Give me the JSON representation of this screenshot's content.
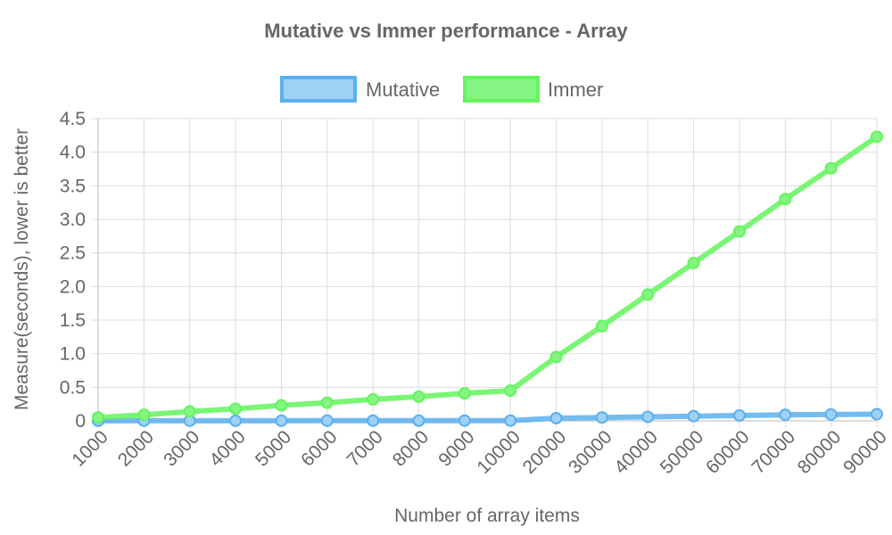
{
  "chart_data": {
    "type": "line",
    "title": "Mutative vs Immer performance - Array",
    "xlabel": "Number of array items",
    "ylabel": "Measure(seconds), lower is better",
    "categories": [
      "1000",
      "2000",
      "3000",
      "4000",
      "5000",
      "6000",
      "7000",
      "8000",
      "9000",
      "10000",
      "20000",
      "30000",
      "40000",
      "50000",
      "60000",
      "70000",
      "80000",
      "90000"
    ],
    "ylim": [
      0,
      4.5
    ],
    "yticks": [
      "0",
      "0.5",
      "1.0",
      "1.5",
      "2.0",
      "2.5",
      "3.0",
      "3.5",
      "4.0",
      "4.5"
    ],
    "grid": true,
    "legend_position": "top",
    "series": [
      {
        "name": "Mutative",
        "color": "#5ab0ef",
        "fill": "#9fd1f7",
        "values": [
          0.001,
          0.002,
          0.002,
          0.002,
          0.002,
          0.003,
          0.003,
          0.003,
          0.004,
          0.004,
          0.04,
          0.05,
          0.06,
          0.07,
          0.08,
          0.09,
          0.095,
          0.1
        ]
      },
      {
        "name": "Immer",
        "color": "#62f55c",
        "fill": "#86f483",
        "values": [
          0.05,
          0.09,
          0.14,
          0.18,
          0.23,
          0.27,
          0.32,
          0.36,
          0.41,
          0.45,
          0.95,
          1.41,
          1.88,
          2.35,
          2.82,
          3.3,
          3.76,
          4.23
        ]
      }
    ]
  }
}
